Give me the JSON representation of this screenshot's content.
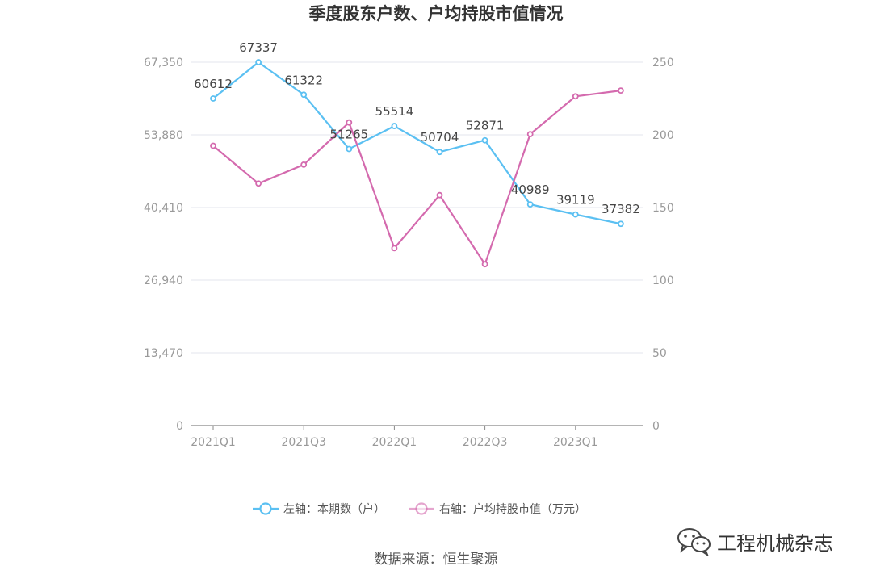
{
  "chart_data": {
    "type": "line",
    "title": "季度股东户数、户均持股市值情况",
    "categories": [
      "2021Q1",
      "2021Q2",
      "2021Q3",
      "2021Q4",
      "2022Q1",
      "2022Q2",
      "2022Q3",
      "2022Q4",
      "2023Q1",
      "2023Q2"
    ],
    "x_tick_labels": [
      "2021Q1",
      "",
      "2021Q3",
      "",
      "2022Q1",
      "",
      "2022Q3",
      "",
      "2023Q1",
      ""
    ],
    "y_left": {
      "min": 0,
      "max": 67350,
      "ticks": [
        "0",
        "13,470",
        "26,940",
        "40,410",
        "53,880",
        "67,350"
      ]
    },
    "y_right": {
      "min": 0,
      "max": 250,
      "ticks": [
        "0",
        "50",
        "100",
        "150",
        "200",
        "250"
      ]
    },
    "grid": true,
    "legend_position": "bottom",
    "series": [
      {
        "name": "左轴：本期数（户）",
        "axis": "left",
        "color": "#5bc0f2",
        "values": [
          60612,
          67337,
          61322,
          51265,
          55514,
          50704,
          52871,
          40989,
          39119,
          37382
        ],
        "labels": [
          "60612",
          "67337",
          "61322",
          "51265",
          "55514",
          "50704",
          "52871",
          "40989",
          "39119",
          "37382"
        ]
      },
      {
        "name": "右轴：户均持股市值（万元）",
        "axis": "right",
        "color": "#d46aae",
        "values": [
          192.5,
          166.5,
          179.5,
          208.5,
          122.0,
          158.5,
          111.0,
          200.5,
          226.5,
          230.5
        ]
      }
    ],
    "source": "数据来源：恒生聚源"
  },
  "watermark": {
    "text": "工程机械杂志",
    "icon": "wechat-icon"
  },
  "colors": {
    "grid": "#e3e6ec",
    "axis": "#888888",
    "tick_text": "#999999",
    "label_text": "#444444",
    "title": "#333333"
  }
}
